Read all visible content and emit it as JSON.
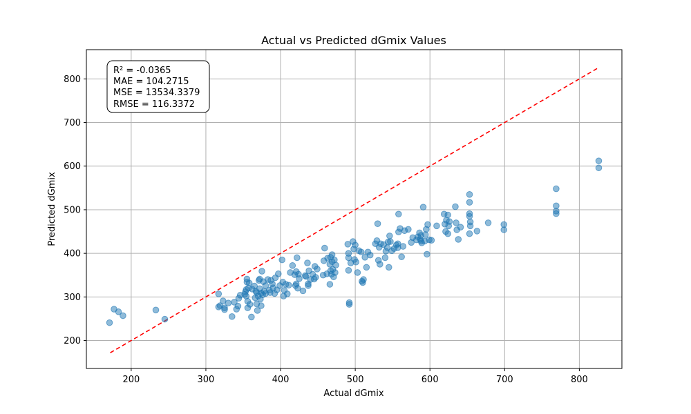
{
  "chart_data": {
    "type": "scatter",
    "title": "Actual vs Predicted dGmix Values",
    "xlabel": "Actual dGmix",
    "ylabel": "Predicted dGmix",
    "xlim": [
      140,
      857
    ],
    "ylim": [
      136,
      867
    ],
    "xticks": [
      200,
      300,
      400,
      500,
      600,
      700,
      800
    ],
    "yticks": [
      200,
      300,
      400,
      500,
      600,
      700,
      800
    ],
    "grid": true,
    "point_color": "#1f77b4",
    "identity_line": {
      "from": [
        172,
        172
      ],
      "to": [
        826,
        826
      ],
      "color": "#ff0000",
      "style": "dashed"
    },
    "stats": [
      "R² = -0.0365",
      "MAE = 104.2715",
      "MSE = 13534.3379",
      "RMSE = 116.3372"
    ],
    "points": [
      [
        171,
        241
      ],
      [
        177,
        272
      ],
      [
        183,
        266
      ],
      [
        189,
        257
      ],
      [
        233,
        270
      ],
      [
        245,
        249
      ],
      [
        317,
        307
      ],
      [
        317,
        277
      ],
      [
        319,
        280
      ],
      [
        323,
        291
      ],
      [
        325,
        275
      ],
      [
        325,
        271
      ],
      [
        330,
        286
      ],
      [
        335,
        255
      ],
      [
        338,
        288
      ],
      [
        341,
        272
      ],
      [
        343,
        279
      ],
      [
        344,
        297
      ],
      [
        346,
        304
      ],
      [
        352,
        306
      ],
      [
        353,
        312
      ],
      [
        354,
        317
      ],
      [
        354,
        302
      ],
      [
        355,
        341
      ],
      [
        355,
        334
      ],
      [
        356,
        290
      ],
      [
        356,
        275
      ],
      [
        357,
        320
      ],
      [
        358,
        332
      ],
      [
        359,
        283
      ],
      [
        361,
        254
      ],
      [
        362,
        318
      ],
      [
        365,
        325
      ],
      [
        366,
        298
      ],
      [
        367,
        313
      ],
      [
        368,
        310
      ],
      [
        368,
        284
      ],
      [
        369,
        269
      ],
      [
        370,
        302
      ],
      [
        371,
        338
      ],
      [
        372,
        341
      ],
      [
        372,
        319
      ],
      [
        373,
        295
      ],
      [
        374,
        280
      ],
      [
        374,
        309
      ],
      [
        375,
        359
      ],
      [
        376,
        305
      ],
      [
        377,
        335
      ],
      [
        378,
        313
      ],
      [
        380,
        308
      ],
      [
        380,
        326
      ],
      [
        383,
        340
      ],
      [
        385,
        316
      ],
      [
        386,
        310
      ],
      [
        387,
        338
      ],
      [
        389,
        330
      ],
      [
        390,
        321
      ],
      [
        392,
        308
      ],
      [
        393,
        344
      ],
      [
        395,
        316
      ],
      [
        397,
        353
      ],
      [
        399,
        326
      ],
      [
        402,
        385
      ],
      [
        403,
        334
      ],
      [
        404,
        302
      ],
      [
        405,
        315
      ],
      [
        407,
        329
      ],
      [
        409,
        307
      ],
      [
        411,
        327
      ],
      [
        413,
        356
      ],
      [
        416,
        372
      ],
      [
        419,
        351
      ],
      [
        420,
        326
      ],
      [
        421,
        330
      ],
      [
        421,
        358
      ],
      [
        422,
        390
      ],
      [
        423,
        320
      ],
      [
        424,
        352
      ],
      [
        425,
        342
      ],
      [
        430,
        314
      ],
      [
        433,
        349
      ],
      [
        434,
        347
      ],
      [
        436,
        378
      ],
      [
        437,
        330
      ],
      [
        437,
        326
      ],
      [
        438,
        360
      ],
      [
        440,
        340
      ],
      [
        443,
        352
      ],
      [
        445,
        341
      ],
      [
        446,
        370
      ],
      [
        447,
        345
      ],
      [
        449,
        364
      ],
      [
        457,
        350
      ],
      [
        458,
        383
      ],
      [
        459,
        412
      ],
      [
        462,
        353
      ],
      [
        463,
        389
      ],
      [
        466,
        375
      ],
      [
        466,
        329
      ],
      [
        467,
        360
      ],
      [
        467,
        391
      ],
      [
        468,
        352
      ],
      [
        469,
        397
      ],
      [
        469,
        381
      ],
      [
        470,
        363
      ],
      [
        471,
        346
      ],
      [
        472,
        385
      ],
      [
        473,
        356
      ],
      [
        474,
        373
      ],
      [
        490,
        421
      ],
      [
        491,
        400
      ],
      [
        491,
        390
      ],
      [
        491,
        361
      ],
      [
        492,
        283
      ],
      [
        492,
        287
      ],
      [
        494,
        378
      ],
      [
        497,
        427
      ],
      [
        498,
        410
      ],
      [
        499,
        386
      ],
      [
        500,
        419
      ],
      [
        501,
        380
      ],
      [
        503,
        356
      ],
      [
        505,
        406
      ],
      [
        508,
        403
      ],
      [
        509,
        336
      ],
      [
        510,
        333
      ],
      [
        511,
        340
      ],
      [
        513,
        391
      ],
      [
        515,
        368
      ],
      [
        517,
        403
      ],
      [
        520,
        396
      ],
      [
        527,
        422
      ],
      [
        529,
        429
      ],
      [
        530,
        468
      ],
      [
        531,
        384
      ],
      [
        532,
        414
      ],
      [
        533,
        375
      ],
      [
        534,
        422
      ],
      [
        538,
        420
      ],
      [
        540,
        390
      ],
      [
        541,
        405
      ],
      [
        543,
        413
      ],
      [
        544,
        426
      ],
      [
        545,
        368
      ],
      [
        546,
        440
      ],
      [
        547,
        427
      ],
      [
        549,
        406
      ],
      [
        552,
        411
      ],
      [
        555,
        419
      ],
      [
        557,
        413
      ],
      [
        557,
        422
      ],
      [
        558,
        449
      ],
      [
        558,
        490
      ],
      [
        560,
        457
      ],
      [
        562,
        392
      ],
      [
        564,
        416
      ],
      [
        566,
        452
      ],
      [
        571,
        455
      ],
      [
        575,
        425
      ],
      [
        577,
        436
      ],
      [
        582,
        431
      ],
      [
        584,
        438
      ],
      [
        586,
        447
      ],
      [
        587,
        432
      ],
      [
        588,
        441
      ],
      [
        588,
        428
      ],
      [
        589,
        424
      ],
      [
        591,
        506
      ],
      [
        593,
        428
      ],
      [
        594,
        443
      ],
      [
        595,
        455
      ],
      [
        596,
        398
      ],
      [
        597,
        466
      ],
      [
        599,
        431
      ],
      [
        602,
        430
      ],
      [
        609,
        463
      ],
      [
        619,
        490
      ],
      [
        620,
        467
      ],
      [
        621,
        450
      ],
      [
        622,
        476
      ],
      [
        624,
        445
      ],
      [
        624,
        488
      ],
      [
        625,
        463
      ],
      [
        626,
        473
      ],
      [
        634,
        507
      ],
      [
        635,
        470
      ],
      [
        636,
        454
      ],
      [
        638,
        432
      ],
      [
        641,
        460
      ],
      [
        653,
        445
      ],
      [
        653,
        485
      ],
      [
        653,
        491
      ],
      [
        653,
        517
      ],
      [
        653,
        535
      ],
      [
        654,
        463
      ],
      [
        654,
        472
      ],
      [
        663,
        451
      ],
      [
        678,
        470
      ],
      [
        699,
        454
      ],
      [
        699,
        466
      ],
      [
        769,
        548
      ],
      [
        769,
        509
      ],
      [
        769,
        497
      ],
      [
        769,
        491
      ],
      [
        826,
        612
      ],
      [
        826,
        596
      ]
    ]
  }
}
